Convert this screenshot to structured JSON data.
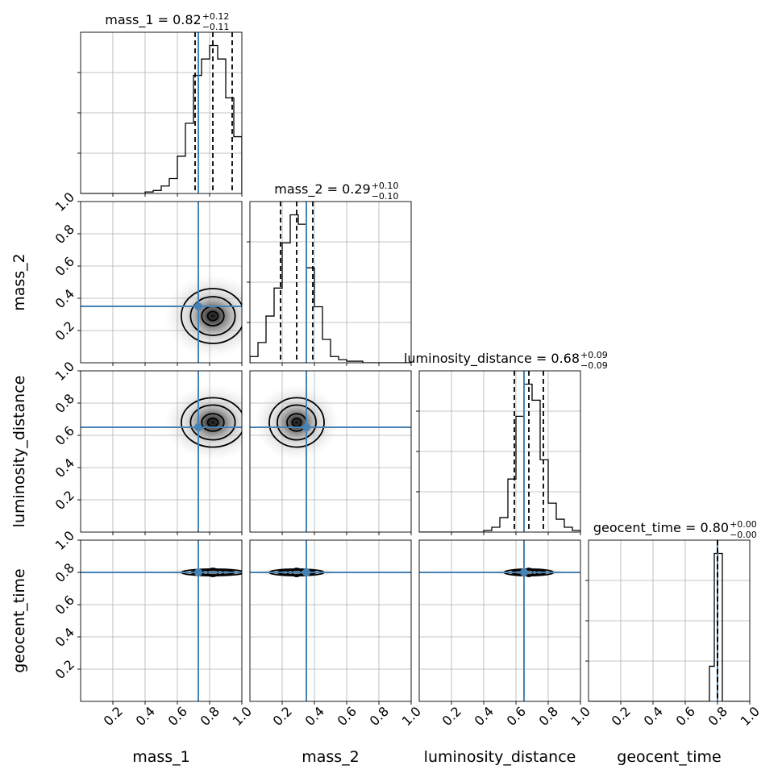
{
  "chart_data": {
    "type": "corner",
    "parameters": [
      "mass_1",
      "mass_2",
      "luminosity_distance",
      "geocent_time"
    ],
    "axis_labels": [
      "mass_1",
      "mass_2",
      "luminosity_distance",
      "geocent_time"
    ],
    "titles": [
      {
        "text": "mass_1 = 0.82",
        "plus": "+0.12",
        "minus": "−0.11"
      },
      {
        "text": "mass_2 = 0.29",
        "plus": "+0.10",
        "minus": "−0.10"
      },
      {
        "text": "luminosity_distance = 0.68",
        "plus": "+0.09",
        "minus": "−0.09"
      },
      {
        "text": "geocent_time = 0.80",
        "plus": "+0.00",
        "minus": "−0.00"
      }
    ],
    "range": [
      0,
      1
    ],
    "tick_values": [
      0.2,
      0.4,
      0.6,
      0.8,
      1.0
    ],
    "tick_labels": [
      "0.2",
      "0.4",
      "0.6",
      "0.8",
      "1.0"
    ],
    "truths": [
      0.73,
      0.35,
      0.65,
      0.8
    ],
    "quantiles": [
      [
        0.71,
        0.82,
        0.94
      ],
      [
        0.19,
        0.29,
        0.39
      ],
      [
        0.59,
        0.68,
        0.77
      ],
      [
        0.8,
        0.8,
        0.8
      ]
    ],
    "histograms": [
      {
        "bins": [
          0.4,
          0.45,
          0.5,
          0.55,
          0.6,
          0.65,
          0.7,
          0.75,
          0.8,
          0.85,
          0.9,
          0.95,
          1.0
        ],
        "counts": [
          0.01,
          0.02,
          0.05,
          0.1,
          0.25,
          0.47,
          0.79,
          0.9,
          0.99,
          0.9,
          0.64,
          0.38
        ]
      },
      {
        "bins": [
          0.0,
          0.05,
          0.1,
          0.15,
          0.2,
          0.25,
          0.3,
          0.35,
          0.4,
          0.45,
          0.5,
          0.55,
          0.6,
          0.65,
          0.7
        ],
        "counts": [
          0.04,
          0.13,
          0.3,
          0.48,
          0.77,
          0.95,
          0.89,
          0.61,
          0.36,
          0.15,
          0.04,
          0.02,
          0.01,
          0.01
        ]
      },
      {
        "bins": [
          0.4,
          0.45,
          0.5,
          0.55,
          0.6,
          0.65,
          0.7,
          0.75,
          0.8,
          0.85,
          0.9,
          0.95,
          1.0
        ],
        "counts": [
          0.01,
          0.03,
          0.09,
          0.33,
          0.72,
          0.92,
          0.82,
          0.45,
          0.18,
          0.08,
          0.03,
          0.01
        ]
      },
      {
        "bins": [
          0.75,
          0.78,
          0.8,
          0.83,
          0.85
        ],
        "counts": [
          0.19,
          0.8,
          0.8,
          0.0
        ]
      }
    ],
    "grid": true
  }
}
